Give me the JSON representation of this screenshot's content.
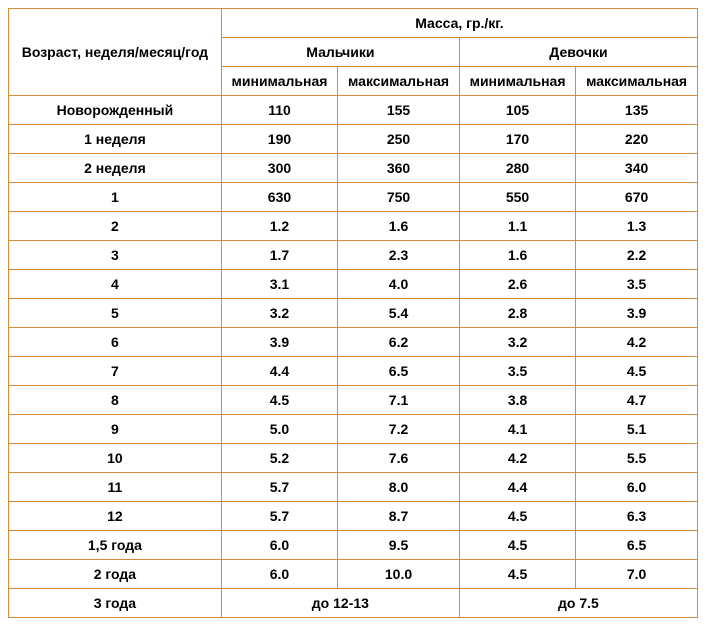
{
  "header": {
    "age_col": "Возраст, неделя/месяц/год",
    "mass": "Масса, гр./кг.",
    "boys": "Мальчики",
    "girls": "Девочки",
    "min": "минимальная",
    "max": "максимальная"
  },
  "rows": [
    {
      "age": "Новорожденный",
      "boy_min": "110",
      "boy_max": "155",
      "girl_min": "105",
      "girl_max": "135"
    },
    {
      "age": "1 неделя",
      "boy_min": "190",
      "boy_max": "250",
      "girl_min": "170",
      "girl_max": "220"
    },
    {
      "age": "2 неделя",
      "boy_min": "300",
      "boy_max": "360",
      "girl_min": "280",
      "girl_max": "340"
    },
    {
      "age": "1",
      "boy_min": "630",
      "boy_max": "750",
      "girl_min": "550",
      "girl_max": "670"
    },
    {
      "age": "2",
      "boy_min": "1.2",
      "boy_max": "1.6",
      "girl_min": "1.1",
      "girl_max": "1.3"
    },
    {
      "age": "3",
      "boy_min": "1.7",
      "boy_max": "2.3",
      "girl_min": "1.6",
      "girl_max": "2.2"
    },
    {
      "age": "4",
      "boy_min": "3.1",
      "boy_max": "4.0",
      "girl_min": "2.6",
      "girl_max": "3.5"
    },
    {
      "age": "5",
      "boy_min": "3.2",
      "boy_max": "5.4",
      "girl_min": "2.8",
      "girl_max": "3.9"
    },
    {
      "age": "6",
      "boy_min": "3.9",
      "boy_max": "6.2",
      "girl_min": "3.2",
      "girl_max": "4.2"
    },
    {
      "age": "7",
      "boy_min": "4.4",
      "boy_max": "6.5",
      "girl_min": "3.5",
      "girl_max": "4.5"
    },
    {
      "age": "8",
      "boy_min": "4.5",
      "boy_max": "7.1",
      "girl_min": "3.8",
      "girl_max": "4.7"
    },
    {
      "age": "9",
      "boy_min": "5.0",
      "boy_max": "7.2",
      "girl_min": "4.1",
      "girl_max": "5.1"
    },
    {
      "age": "10",
      "boy_min": "5.2",
      "boy_max": "7.6",
      "girl_min": "4.2",
      "girl_max": "5.5"
    },
    {
      "age": "11",
      "boy_min": "5.7",
      "boy_max": "8.0",
      "girl_min": "4.4",
      "girl_max": "6.0"
    },
    {
      "age": "12",
      "boy_min": "5.7",
      "boy_max": "8.7",
      "girl_min": "4.5",
      "girl_max": "6.3"
    },
    {
      "age": "1,5 года",
      "boy_min": "6.0",
      "boy_max": "9.5",
      "girl_min": "4.5",
      "girl_max": "6.5"
    },
    {
      "age": "2 года",
      "boy_min": "6.0",
      "boy_max": "10.0",
      "girl_min": "4.5",
      "girl_max": "7.0"
    }
  ],
  "final_row": {
    "age": "3 года",
    "boys": "до 12-13",
    "girls": "до 7.5"
  }
}
